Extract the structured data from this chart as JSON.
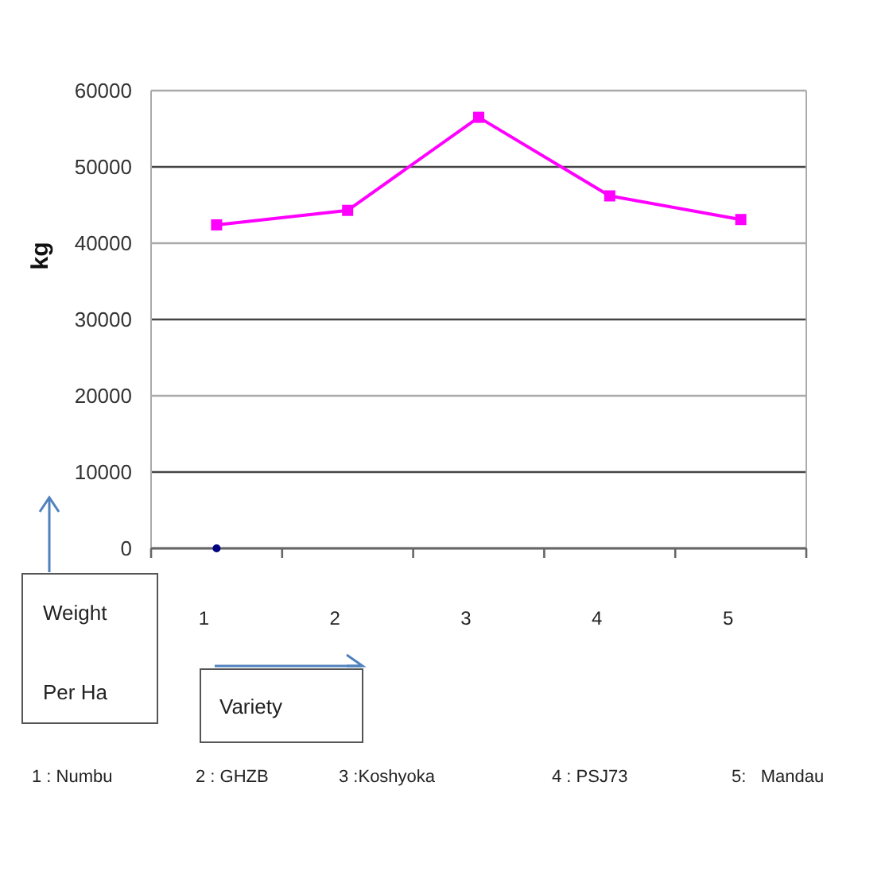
{
  "chart_data": {
    "type": "line",
    "ylabel": "kg",
    "categories": [
      "1",
      "2",
      "3",
      "4",
      "5"
    ],
    "series": [
      {
        "color": "#ff00ff",
        "marker": "square",
        "values": [
          42400,
          44300,
          56500,
          46200,
          43100
        ]
      },
      {
        "type": "scatter",
        "color": "#000080",
        "marker": "circle",
        "values": [
          0,
          null,
          null,
          null,
          null
        ]
      }
    ],
    "ylim": [
      0,
      60000
    ],
    "yticks": [
      0,
      10000,
      20000,
      30000,
      40000,
      50000,
      60000
    ],
    "grid": "y",
    "annotations": [
      "Weight Per Ha",
      "Variety",
      "1 : Numbu",
      "2 : GHZB",
      "3 :Koshyoka",
      "4 : PSJ73",
      "5:   Mandau"
    ]
  }
}
